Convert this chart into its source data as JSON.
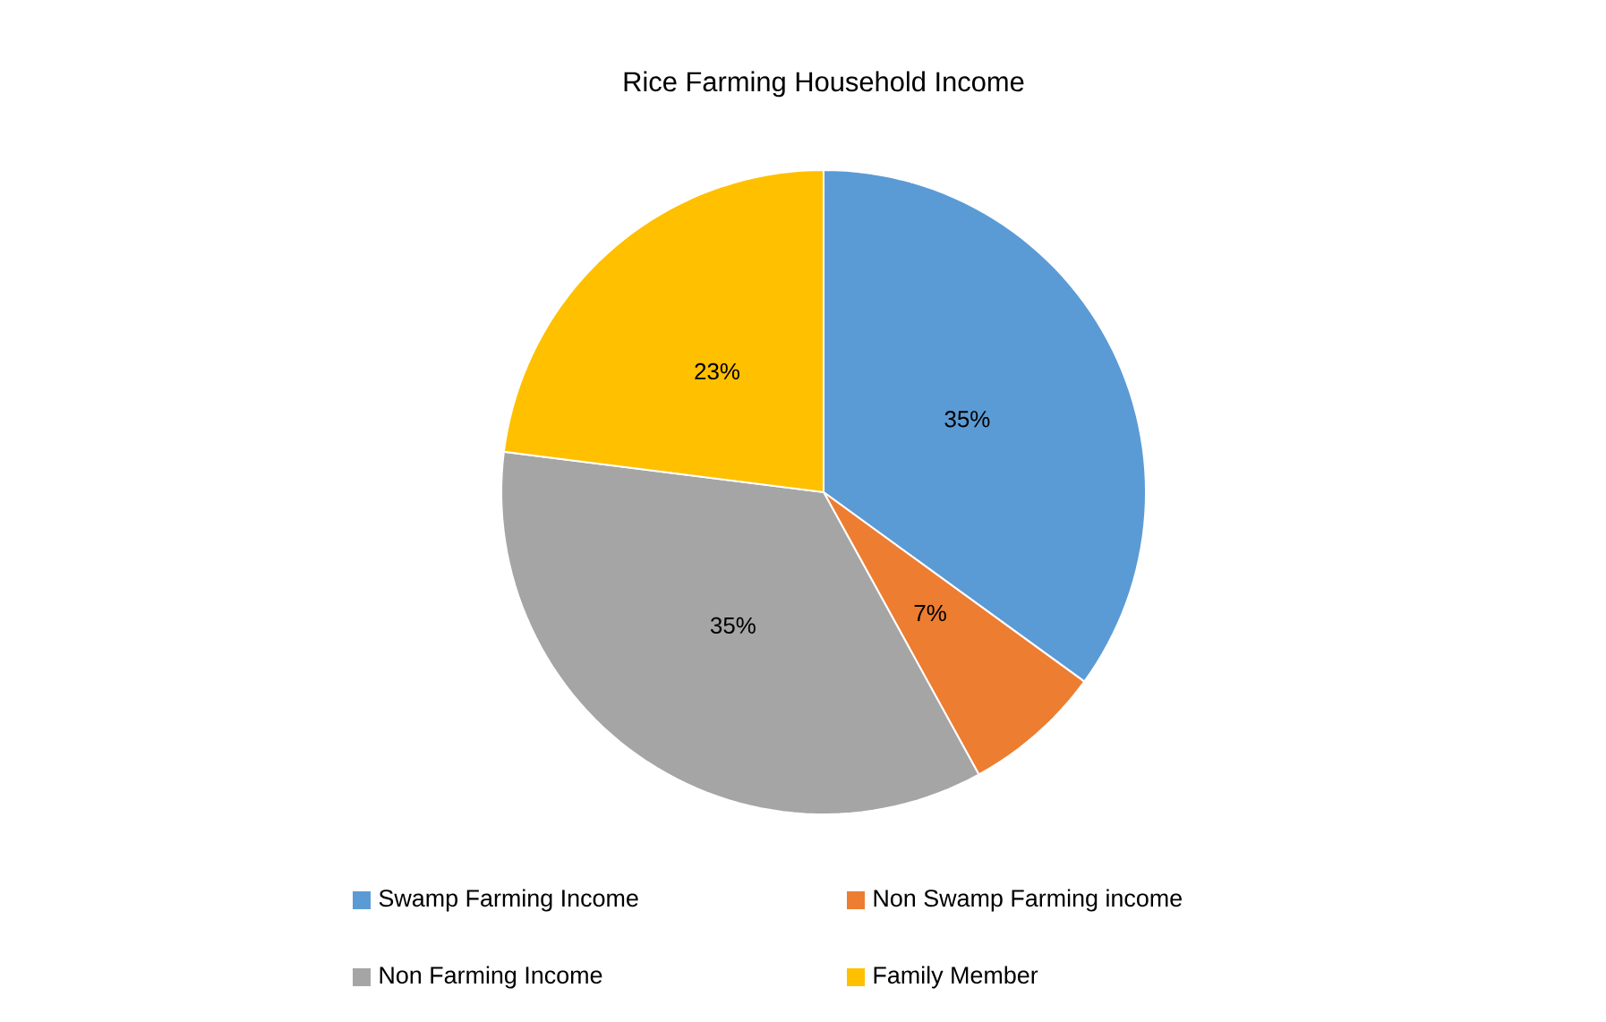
{
  "chart_data": {
    "type": "pie",
    "title": "Rice Farming Household Income",
    "categories": [
      "Swamp Farming Income",
      "Non Swamp Farming income",
      "Non Farming Income",
      "Family Member"
    ],
    "values": [
      35,
      7,
      35,
      23
    ],
    "colors": [
      "#5b9bd5",
      "#ed7d31",
      "#a5a5a5",
      "#ffc000"
    ],
    "data_labels": true,
    "value_labels": [
      "35%",
      "7%",
      "35%",
      "23%"
    ],
    "legend": "bottom"
  }
}
